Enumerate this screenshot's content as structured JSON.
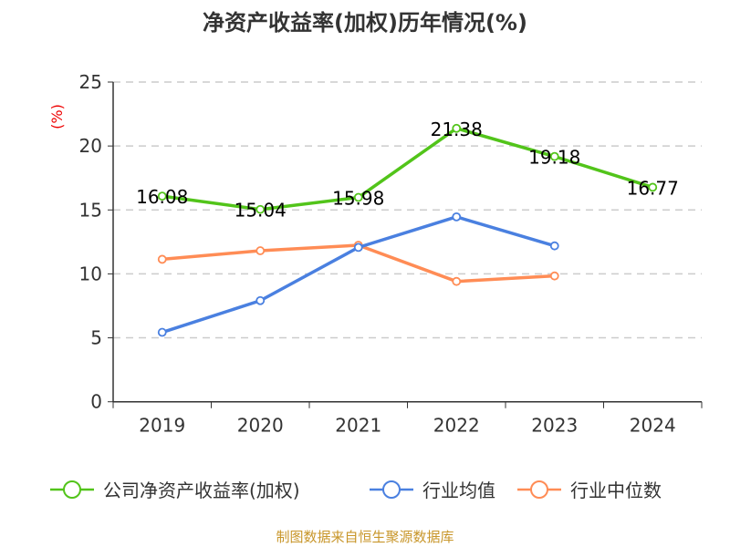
{
  "chart_data": {
    "type": "line",
    "title": "净资产收益率(加权)历年情况(%)",
    "ylabel": "(%)",
    "categories": [
      "2019",
      "2020",
      "2021",
      "2022",
      "2023",
      "2024"
    ],
    "ylim": [
      0,
      25
    ],
    "yticks": [
      0,
      5,
      10,
      15,
      20,
      25
    ],
    "grid": true,
    "legend_placement": "bottom",
    "series": [
      {
        "name": "公司净资产收益率(加权)",
        "color": "#52c41a",
        "values": [
          16.08,
          15.04,
          15.98,
          21.38,
          19.18,
          16.77
        ],
        "labels": [
          "16.08",
          "15.04",
          "15.98",
          "21.38",
          "19.18",
          "16.77"
        ]
      },
      {
        "name": "行业均值",
        "color": "#4a80e0",
        "values": [
          5.43,
          7.91,
          12.07,
          14.46,
          12.19,
          null
        ]
      },
      {
        "name": "行业中位数",
        "color": "#ff8c55",
        "values": [
          11.14,
          11.81,
          12.24,
          9.41,
          9.84,
          null
        ]
      }
    ],
    "source": "制图数据来自恒生聚源数据库"
  }
}
